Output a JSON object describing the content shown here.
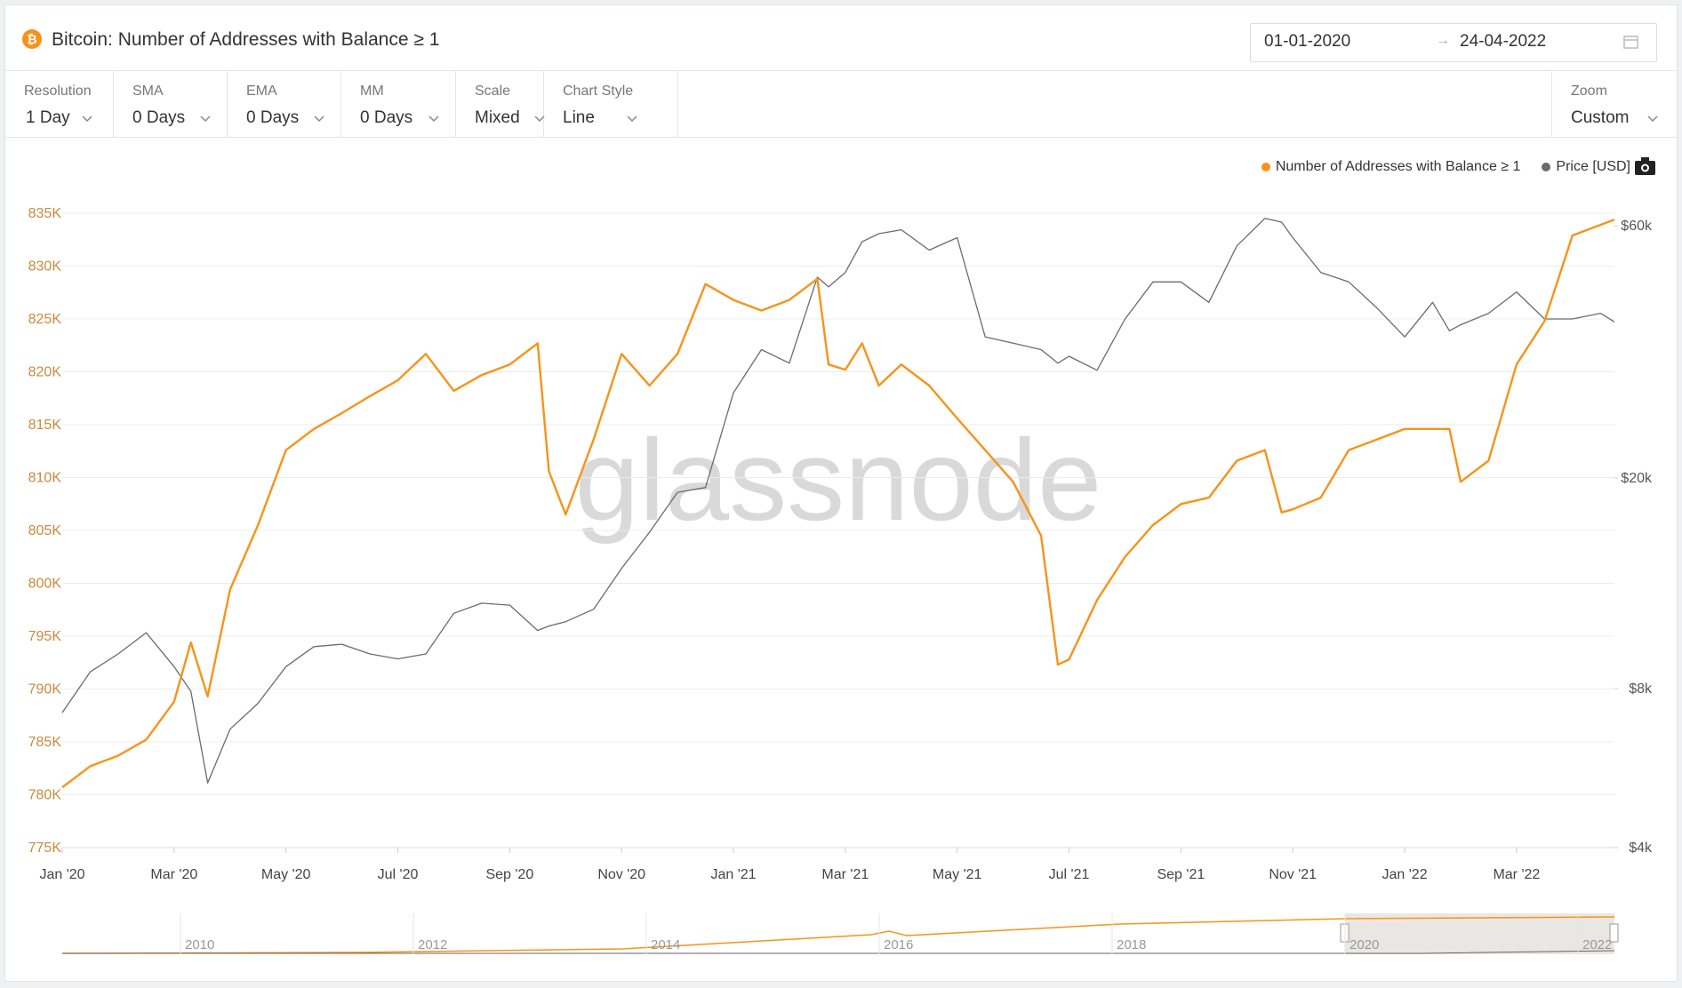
{
  "header": {
    "title": "Bitcoin: Number of Addresses with Balance ≥ 1",
    "date_from": "01-01-2020",
    "date_to": "24-04-2022"
  },
  "toolbar": [
    {
      "label": "Resolution",
      "value": "1 Day"
    },
    {
      "label": "SMA",
      "value": "0 Days"
    },
    {
      "label": "EMA",
      "value": "0 Days"
    },
    {
      "label": "MM",
      "value": "0 Days"
    },
    {
      "label": "Scale",
      "value": "Mixed"
    },
    {
      "label": "Chart Style",
      "value": "Line"
    }
  ],
  "zoom": {
    "label": "Zoom",
    "value": "Custom"
  },
  "chart_data": {
    "type": "line",
    "watermark": "glassnode",
    "grid": true,
    "legend": "top-right",
    "y2_scale": "log",
    "x": [
      0,
      0.5,
      1,
      1.5,
      2,
      2.3,
      2.6,
      3,
      3.5,
      4,
      4.5,
      5,
      5.5,
      6,
      6.5,
      7,
      7.5,
      8,
      8.5,
      8.7,
      9,
      9.5,
      10,
      10.5,
      11,
      11.5,
      12,
      12.5,
      13,
      13.5,
      13.7,
      14,
      14.3,
      14.6,
      15,
      15.5,
      16,
      16.5,
      17,
      17.5,
      17.8,
      18,
      18.5,
      19,
      19.5,
      20,
      20.5,
      21,
      21.5,
      21.8,
      22,
      22.5,
      23,
      23.5,
      24,
      24.5,
      24.8,
      25,
      25.5,
      26,
      26.5,
      27,
      27.5,
      27.75
    ],
    "xlim": [
      0,
      27.75
    ],
    "xticks": [
      {
        "value": 0,
        "label": "Jan '20"
      },
      {
        "value": 2,
        "label": "Mar '20"
      },
      {
        "value": 4,
        "label": "May '20"
      },
      {
        "value": 6,
        "label": "Jul '20"
      },
      {
        "value": 8,
        "label": "Sep '20"
      },
      {
        "value": 10,
        "label": "Nov '20"
      },
      {
        "value": 12,
        "label": "Jan '21"
      },
      {
        "value": 14,
        "label": "Mar '21"
      },
      {
        "value": 16,
        "label": "May '21"
      },
      {
        "value": 18,
        "label": "Jul '21"
      },
      {
        "value": 20,
        "label": "Sep '21"
      },
      {
        "value": 22,
        "label": "Nov '21"
      },
      {
        "value": 24,
        "label": "Jan '22"
      },
      {
        "value": 26,
        "label": "Mar '22"
      }
    ],
    "ylim": [
      775000,
      835000
    ],
    "yticks": [
      {
        "value": 775000,
        "label": "775K"
      },
      {
        "value": 780000,
        "label": "780K"
      },
      {
        "value": 785000,
        "label": "785K"
      },
      {
        "value": 790000,
        "label": "790K"
      },
      {
        "value": 795000,
        "label": "795K"
      },
      {
        "value": 800000,
        "label": "800K"
      },
      {
        "value": 805000,
        "label": "805K"
      },
      {
        "value": 810000,
        "label": "810K"
      },
      {
        "value": 815000,
        "label": "815K"
      },
      {
        "value": 820000,
        "label": "820K"
      },
      {
        "value": 825000,
        "label": "825K"
      },
      {
        "value": 830000,
        "label": "830K"
      },
      {
        "value": 835000,
        "label": "835K"
      }
    ],
    "y2lim": [
      4000,
      63400
    ],
    "y2ticks": [
      {
        "value": 4000,
        "label": "$4k"
      },
      {
        "value": 8000,
        "label": "$8k"
      },
      {
        "value": 20000,
        "label": "$20k"
      },
      {
        "value": 60000,
        "label": "$60k"
      }
    ],
    "series": [
      {
        "name": "Number of Addresses with Balance ≥ 1",
        "color": "#f7931a",
        "values": [
          780700,
          782700,
          783700,
          785200,
          788800,
          794400,
          789300,
          799400,
          805500,
          812600,
          814600,
          816100,
          817700,
          819200,
          821700,
          818200,
          819700,
          820700,
          822700,
          810600,
          806500,
          813600,
          821700,
          818700,
          821700,
          828300,
          826800,
          825800,
          826800,
          828800,
          820700,
          820200,
          822700,
          818700,
          820700,
          818700,
          815600,
          812600,
          809600,
          804500,
          792300,
          792800,
          798400,
          802500,
          805500,
          807500,
          808100,
          811600,
          812600,
          806700,
          807000,
          808100,
          812600,
          813600,
          814600,
          814600,
          814600,
          809600,
          811600,
          820700,
          824800,
          832900,
          833900,
          834400
        ]
      },
      {
        "name": "Price [USD]",
        "color": "#6b6b6b",
        "axis": "y2",
        "values": [
          7200,
          8600,
          9300,
          10200,
          8800,
          7900,
          5300,
          6700,
          7500,
          8800,
          9600,
          9700,
          9300,
          9100,
          9300,
          11100,
          11600,
          11500,
          10300,
          10500,
          10700,
          11300,
          13500,
          15800,
          18800,
          19200,
          29000,
          35000,
          33000,
          48000,
          46000,
          49000,
          56000,
          58000,
          59000,
          54000,
          57000,
          37000,
          36000,
          35000,
          33000,
          34000,
          32000,
          40000,
          47000,
          47000,
          43000,
          55000,
          62000,
          61000,
          57000,
          49000,
          47000,
          42000,
          37000,
          43000,
          38000,
          39000,
          41000,
          45000,
          40000,
          40000,
          41000,
          39500
        ]
      }
    ]
  },
  "navigator": {
    "labels": [
      "2010",
      "2012",
      "2014",
      "2016",
      "2018",
      "2020",
      "2022"
    ]
  }
}
